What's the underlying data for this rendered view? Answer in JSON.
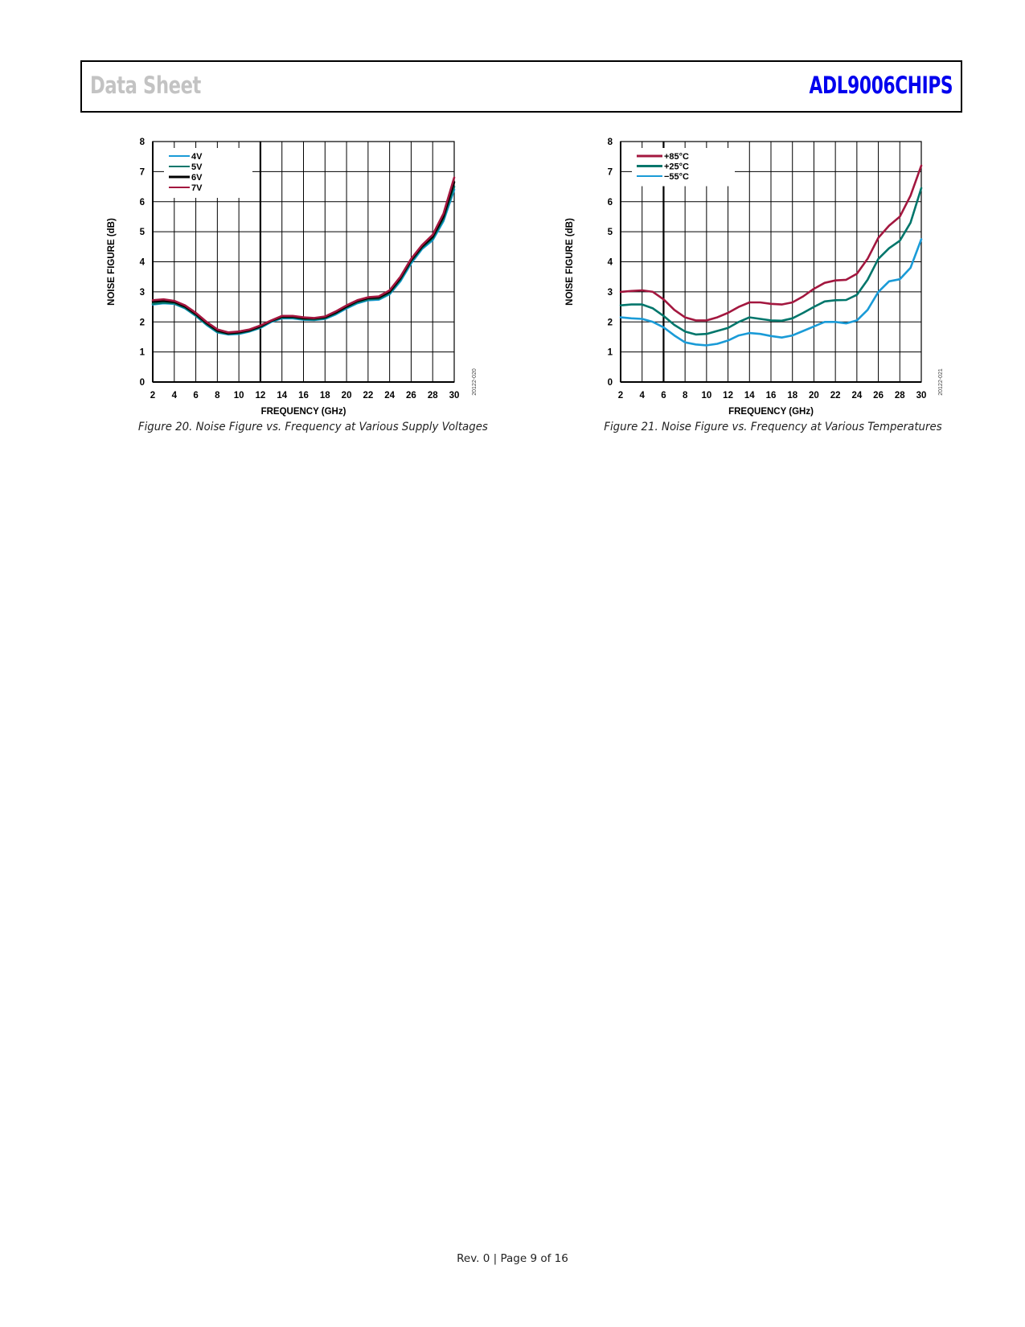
{
  "header": {
    "left": "Data Sheet",
    "right": "ADL9006CHIPS"
  },
  "footer": "Rev. 0 | Page 9 of 16",
  "chart_data": [
    {
      "type": "line",
      "title": "",
      "caption": "Figure 20. Noise Figure vs. Frequency at Various Supply Voltages",
      "figure_id": "20122-020",
      "xlabel": "FREQUENCY (GHz)",
      "ylabel": "NOISE FIGURE (dB)",
      "xlim": [
        2,
        30
      ],
      "ylim": [
        0,
        8
      ],
      "xticks": [
        2,
        4,
        6,
        8,
        10,
        12,
        14,
        16,
        18,
        20,
        22,
        24,
        26,
        28,
        30
      ],
      "yticks": [
        0,
        1,
        2,
        3,
        4,
        5,
        6,
        7,
        8
      ],
      "grid": true,
      "legend_position": "top-left",
      "x": [
        2,
        3,
        4,
        5,
        6,
        7,
        8,
        9,
        10,
        11,
        12,
        13,
        14,
        15,
        16,
        17,
        18,
        19,
        20,
        21,
        22,
        23,
        24,
        25,
        26,
        27,
        28,
        29,
        30
      ],
      "series": [
        {
          "name": "4V",
          "color": "#1a9bd7",
          "values": [
            2.58,
            2.62,
            2.6,
            2.45,
            2.2,
            1.9,
            1.65,
            1.58,
            1.6,
            1.68,
            1.8,
            2.0,
            2.12,
            2.12,
            2.07,
            2.06,
            2.1,
            2.25,
            2.45,
            2.62,
            2.72,
            2.74,
            2.92,
            3.35,
            3.95,
            4.42,
            4.72,
            5.35,
            6.4
          ]
        },
        {
          "name": "5V",
          "color": "#00766b",
          "values": [
            2.6,
            2.64,
            2.62,
            2.47,
            2.22,
            1.92,
            1.67,
            1.6,
            1.62,
            1.7,
            1.82,
            2.02,
            2.14,
            2.14,
            2.09,
            2.08,
            2.12,
            2.28,
            2.48,
            2.65,
            2.75,
            2.77,
            2.95,
            3.4,
            4.0,
            4.46,
            4.77,
            5.42,
            6.5
          ]
        },
        {
          "name": "6V",
          "color": "#000000",
          "values": [
            2.67,
            2.7,
            2.66,
            2.51,
            2.26,
            1.96,
            1.71,
            1.62,
            1.65,
            1.72,
            1.85,
            2.03,
            2.17,
            2.17,
            2.12,
            2.11,
            2.15,
            2.31,
            2.51,
            2.69,
            2.79,
            2.81,
            3.0,
            3.45,
            4.05,
            4.5,
            4.83,
            5.5,
            6.65
          ]
        },
        {
          "name": "7V",
          "color": "#a3173f",
          "values": [
            2.72,
            2.75,
            2.7,
            2.55,
            2.3,
            2.0,
            1.75,
            1.65,
            1.68,
            1.75,
            1.88,
            2.05,
            2.2,
            2.2,
            2.15,
            2.13,
            2.18,
            2.35,
            2.55,
            2.72,
            2.82,
            2.85,
            3.05,
            3.5,
            4.1,
            4.55,
            4.9,
            5.6,
            6.8
          ]
        }
      ]
    },
    {
      "type": "line",
      "title": "",
      "caption": "Figure 21. Noise Figure vs. Frequency at Various Temperatures",
      "figure_id": "20122-021",
      "xlabel": "FREQUENCY (GHz)",
      "ylabel": "NOISE FIGURE (dB)",
      "xlim": [
        2,
        30
      ],
      "ylim": [
        0,
        8
      ],
      "xticks": [
        2,
        4,
        6,
        8,
        10,
        12,
        14,
        16,
        18,
        20,
        22,
        24,
        26,
        28,
        30
      ],
      "yticks": [
        0,
        1,
        2,
        3,
        4,
        5,
        6,
        7,
        8
      ],
      "grid": true,
      "legend_position": "top-left",
      "x": [
        2,
        3,
        4,
        5,
        6,
        7,
        8,
        9,
        10,
        11,
        12,
        13,
        14,
        15,
        16,
        17,
        18,
        19,
        20,
        21,
        22,
        23,
        24,
        25,
        26,
        27,
        28,
        29,
        30
      ],
      "series": [
        {
          "name": "+85°C",
          "color": "#a3173f",
          "values": [
            3.0,
            3.03,
            3.05,
            3.0,
            2.75,
            2.4,
            2.15,
            2.05,
            2.05,
            2.15,
            2.3,
            2.5,
            2.65,
            2.65,
            2.6,
            2.58,
            2.65,
            2.85,
            3.1,
            3.3,
            3.38,
            3.4,
            3.6,
            4.1,
            4.8,
            5.2,
            5.5,
            6.2,
            7.2
          ]
        },
        {
          "name": "+25°C",
          "color": "#00766b",
          "values": [
            2.55,
            2.58,
            2.58,
            2.45,
            2.2,
            1.9,
            1.68,
            1.58,
            1.6,
            1.7,
            1.8,
            2.0,
            2.15,
            2.1,
            2.05,
            2.04,
            2.12,
            2.3,
            2.5,
            2.68,
            2.72,
            2.73,
            2.9,
            3.4,
            4.1,
            4.45,
            4.7,
            5.3,
            6.45
          ]
        },
        {
          "name": "−55°C",
          "color": "#1a9bd7",
          "values": [
            2.15,
            2.12,
            2.1,
            2.0,
            1.82,
            1.55,
            1.32,
            1.25,
            1.22,
            1.27,
            1.38,
            1.55,
            1.63,
            1.6,
            1.53,
            1.48,
            1.55,
            1.7,
            1.85,
            2.0,
            2.0,
            1.95,
            2.05,
            2.4,
            3.0,
            3.35,
            3.42,
            3.8,
            4.75
          ]
        }
      ]
    }
  ]
}
